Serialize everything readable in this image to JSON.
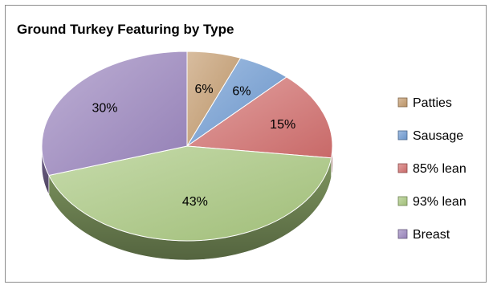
{
  "chart_data": {
    "type": "pie",
    "title": "Ground Turkey Featuring by Type",
    "categories": [
      "Patties",
      "Sausage",
      "85% lean",
      "93% lean",
      "Breast"
    ],
    "values": [
      6,
      6,
      15,
      43,
      30
    ],
    "labels": [
      "6%",
      "6%",
      "15%",
      "43%",
      "30%"
    ],
    "colors": [
      "#c39a6b",
      "#6f9bd3",
      "#d26f6d",
      "#a8c77e",
      "#9b86be"
    ],
    "legend_position": "right",
    "style": "3d"
  }
}
